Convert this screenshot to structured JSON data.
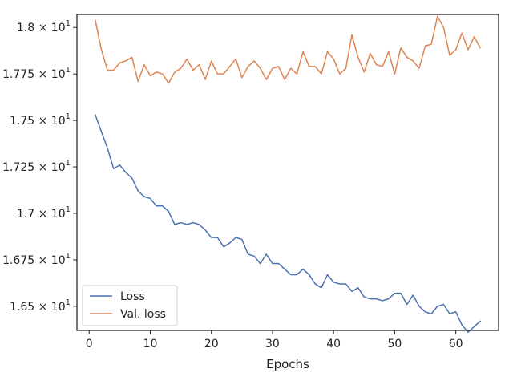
{
  "chart_data": {
    "type": "line",
    "title": "",
    "xlabel": "Epochs",
    "ylabel": "",
    "xlim": [
      -2,
      67
    ],
    "ylim": [
      16.37,
      18.07
    ],
    "grid": false,
    "legend_position": "lower-left",
    "x_ticks": [
      0,
      10,
      20,
      30,
      40,
      50,
      60
    ],
    "x_tick_labels": [
      "0",
      "10",
      "20",
      "30",
      "40",
      "50",
      "60"
    ],
    "y_ticks": [
      16.5,
      16.75,
      17.0,
      17.25,
      17.5,
      17.75,
      18.0
    ],
    "y_tick_labels": [
      {
        "mantissa": "1.65",
        "base": "10",
        "exponent": "1"
      },
      {
        "mantissa": "1.675",
        "base": "10",
        "exponent": "1"
      },
      {
        "mantissa": "1.7",
        "base": "10",
        "exponent": "1"
      },
      {
        "mantissa": "1.725",
        "base": "10",
        "exponent": "1"
      },
      {
        "mantissa": "1.75",
        "base": "10",
        "exponent": "1"
      },
      {
        "mantissa": "1.775",
        "base": "10",
        "exponent": "1"
      },
      {
        "mantissa": "1.8",
        "base": "10",
        "exponent": "1"
      }
    ],
    "times_sign": "×",
    "x": [
      1,
      2,
      3,
      4,
      5,
      6,
      7,
      8,
      9,
      10,
      11,
      12,
      13,
      14,
      15,
      16,
      17,
      18,
      19,
      20,
      21,
      22,
      23,
      24,
      25,
      26,
      27,
      28,
      29,
      30,
      31,
      32,
      33,
      34,
      35,
      36,
      37,
      38,
      39,
      40,
      41,
      42,
      43,
      44,
      45,
      46,
      47,
      48,
      49,
      50,
      51,
      52,
      53,
      54,
      55,
      56,
      57,
      58,
      59,
      60,
      61,
      62,
      63,
      64
    ],
    "series": [
      {
        "name": "Loss",
        "color": "#4c72b0",
        "values": [
          17.53,
          17.44,
          17.35,
          17.24,
          17.26,
          17.22,
          17.19,
          17.12,
          17.09,
          17.08,
          17.04,
          17.04,
          17.01,
          16.94,
          16.95,
          16.94,
          16.95,
          16.94,
          16.91,
          16.87,
          16.87,
          16.82,
          16.84,
          16.87,
          16.86,
          16.78,
          16.77,
          16.73,
          16.78,
          16.73,
          16.73,
          16.7,
          16.67,
          16.67,
          16.7,
          16.67,
          16.62,
          16.6,
          16.67,
          16.63,
          16.62,
          16.62,
          16.58,
          16.6,
          16.55,
          16.54,
          16.54,
          16.53,
          16.54,
          16.57,
          16.57,
          16.51,
          16.56,
          16.5,
          16.47,
          16.46,
          16.5,
          16.51,
          16.46,
          16.47,
          16.4,
          16.36,
          16.39,
          16.42
        ]
      },
      {
        "name": "Val. loss",
        "color": "#dd8452",
        "values": [
          18.04,
          17.88,
          17.77,
          17.77,
          17.81,
          17.82,
          17.84,
          17.71,
          17.8,
          17.74,
          17.76,
          17.75,
          17.7,
          17.76,
          17.78,
          17.83,
          17.77,
          17.8,
          17.72,
          17.82,
          17.75,
          17.75,
          17.79,
          17.83,
          17.73,
          17.79,
          17.82,
          17.78,
          17.72,
          17.78,
          17.79,
          17.72,
          17.78,
          17.75,
          17.87,
          17.79,
          17.79,
          17.75,
          17.87,
          17.83,
          17.75,
          17.78,
          17.96,
          17.84,
          17.76,
          17.86,
          17.8,
          17.79,
          17.87,
          17.75,
          17.89,
          17.84,
          17.82,
          17.78,
          17.9,
          17.91,
          18.06,
          18.0,
          17.85,
          17.88,
          17.97,
          17.88,
          17.95,
          17.89
        ]
      }
    ]
  }
}
